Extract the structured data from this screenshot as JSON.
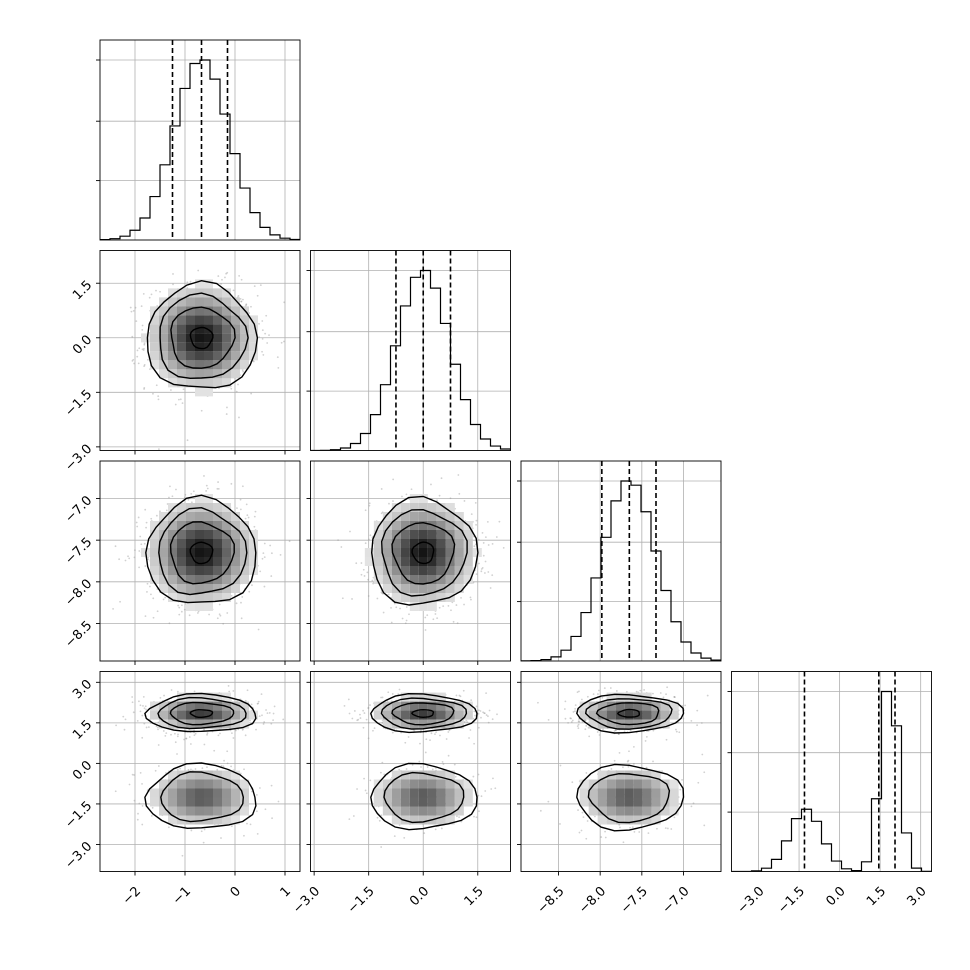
{
  "chart_data": {
    "type": "corner",
    "title": "",
    "grid": true,
    "quantiles": [
      0.16,
      0.5,
      0.84
    ],
    "contour_levels": 4,
    "params": [
      {
        "index": 0,
        "range": [
          -2.7,
          1.3
        ],
        "ticks": [
          -2,
          -1,
          0,
          1
        ],
        "tick_labels": [
          "−2",
          "−1",
          "0",
          "1"
        ],
        "quantile_values": [
          -1.25,
          -0.67,
          -0.15
        ],
        "dist": {
          "type": "normal",
          "mu": -0.67,
          "sigma": 0.55
        },
        "hist_bins": 20
      },
      {
        "index": 1,
        "range": [
          -3.1,
          2.4
        ],
        "ticks": [
          -3.0,
          -1.5,
          0.0,
          1.5
        ],
        "tick_labels": [
          "−3.0",
          "−1.5",
          "0.0",
          "1.5"
        ],
        "quantile_values": [
          -0.75,
          0.0,
          0.75
        ],
        "dist": {
          "type": "normal",
          "mu": 0.0,
          "sigma": 0.73
        },
        "hist_bins": 20
      },
      {
        "index": 2,
        "range": [
          -8.95,
          -6.55
        ],
        "ticks": [
          -8.5,
          -8.0,
          -7.5,
          -7.0
        ],
        "tick_labels": [
          "−8.5",
          "−8.0",
          "−7.5",
          "−7.0"
        ],
        "quantile_values": [
          -7.98,
          -7.65,
          -7.33
        ],
        "dist": {
          "type": "normal",
          "mu": -7.65,
          "sigma": 0.32
        },
        "hist_bins": 20
      },
      {
        "index": 3,
        "range": [
          -4.0,
          3.4
        ],
        "ticks": [
          -3.0,
          -1.5,
          0.0,
          1.5,
          3.0
        ],
        "tick_labels": [
          "−3.0",
          "−1.5",
          "0.0",
          "1.5",
          "3.0"
        ],
        "quantile_values": [
          -1.3,
          1.45,
          2.05
        ],
        "dist": {
          "type": "bimodal",
          "modes": [
            {
              "mu": -1.25,
              "sigma": 0.6,
              "weight": 0.36
            },
            {
              "mu": 1.85,
              "sigma": 0.35,
              "weight": 0.64
            }
          ]
        },
        "hist_bins": 20
      }
    ]
  }
}
